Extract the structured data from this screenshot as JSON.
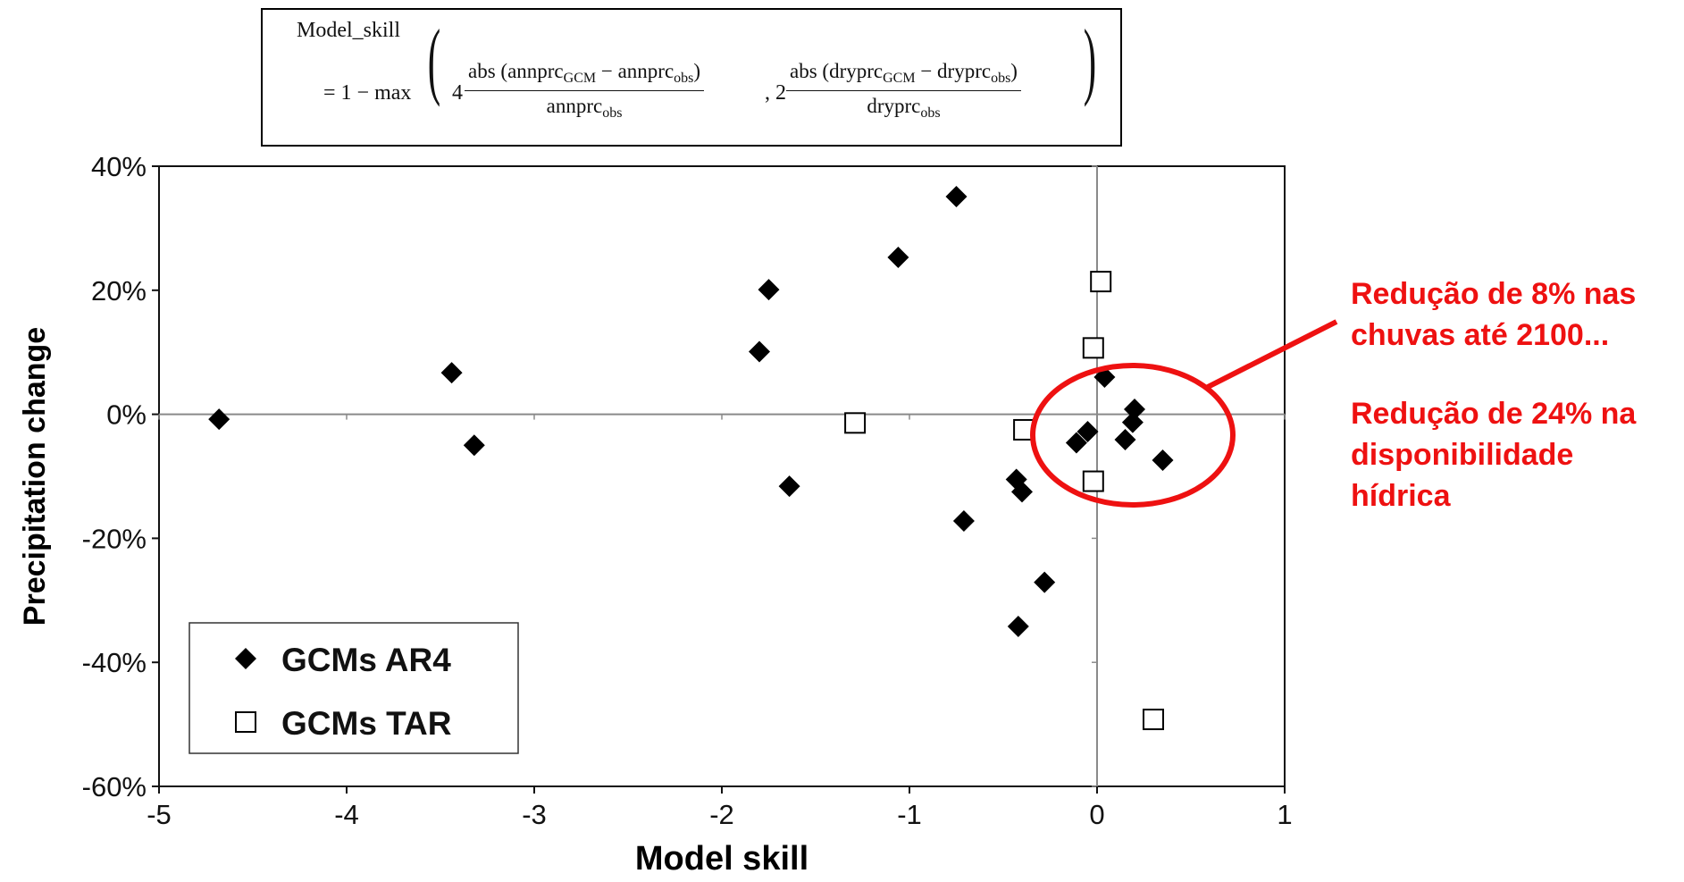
{
  "formula": {
    "line1": "Model_skill",
    "eq_prefix": "= 1 − max",
    "coef1": "4",
    "coef2": ", 2",
    "num1_a": "abs (annprc",
    "num1_sub1": "GCM",
    "num1_b": " − annprc",
    "num1_sub2": "obs",
    "num1_c": ")",
    "den1_a": "annprc",
    "den1_sub": "obs",
    "num2_a": "abs (dryprc",
    "num2_sub1": "GCM",
    "num2_b": " − dryprc",
    "num2_sub2": "obs",
    "num2_c": ")",
    "den2_a": "dryprc",
    "den2_sub": "obs"
  },
  "annotations": {
    "line1": "Redução de 8% nas",
    "line2": "chuvas até 2100...",
    "line3": "Redução de 24% na",
    "line4": "disponibilidade",
    "line5": "hídrica",
    "color": "#ee1111"
  },
  "chart_data": {
    "type": "scatter",
    "xlabel": "Model skill",
    "ylabel": "Precipitation change",
    "xlim": [
      -5,
      1
    ],
    "ylim": [
      -60,
      40
    ],
    "x_ticks": [
      -5,
      -4,
      -3,
      -2,
      -1,
      0,
      1
    ],
    "y_ticks": [
      40,
      20,
      0,
      -20,
      -40,
      -60
    ],
    "y_tick_labels": [
      "40%",
      "20%",
      "0%",
      "-20%",
      "-40%",
      "-60%"
    ],
    "reference_lines": {
      "x": 0,
      "y": 0
    },
    "legend_position": "bottom-left",
    "series": [
      {
        "name": "GCMs AR4",
        "marker": "diamond-filled",
        "color": "#000000",
        "points": [
          [
            -4.68,
            -0.8
          ],
          [
            -3.44,
            6.7
          ],
          [
            -3.32,
            -5.0
          ],
          [
            -1.8,
            10.1
          ],
          [
            -1.75,
            20.1
          ],
          [
            -1.64,
            -11.6
          ],
          [
            -1.06,
            25.3
          ],
          [
            -0.75,
            35.1
          ],
          [
            -0.71,
            -17.2
          ],
          [
            -0.43,
            -10.5
          ],
          [
            -0.4,
            -12.5
          ],
          [
            -0.42,
            -34.2
          ],
          [
            -0.28,
            -27.1
          ],
          [
            -0.11,
            -4.6
          ],
          [
            -0.05,
            -2.8
          ],
          [
            0.04,
            6.0
          ],
          [
            0.2,
            0.8
          ],
          [
            0.19,
            -1.3
          ],
          [
            0.15,
            -4.1
          ],
          [
            0.35,
            -7.4
          ]
        ]
      },
      {
        "name": "GCMs TAR",
        "marker": "square-open",
        "color": "#000000",
        "points": [
          [
            -1.29,
            -1.4
          ],
          [
            -0.39,
            -2.5
          ],
          [
            0.02,
            21.4
          ],
          [
            -0.02,
            10.7
          ],
          [
            -0.02,
            -10.8
          ],
          [
            0.3,
            -49.2
          ]
        ]
      }
    ]
  }
}
